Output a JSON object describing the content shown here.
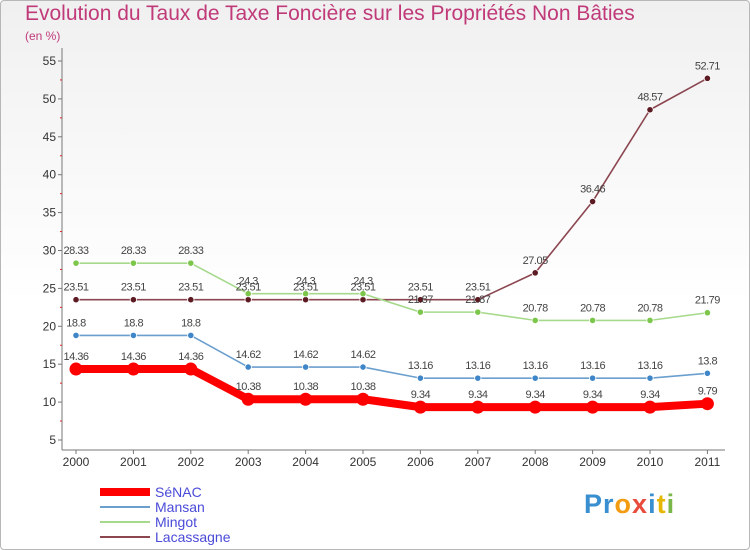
{
  "title": "Evolution du Taux de Taxe Foncière sur les Propriétés Non Bâties",
  "subtitle": "(en %)",
  "logo": {
    "text": "Proxiti",
    "letters": [
      "P",
      "r",
      "o",
      "x",
      "i",
      "t",
      "i"
    ],
    "colors": [
      "#3a8fd0",
      "#3a8fd0",
      "#f39c12",
      "#e74c3c",
      "#3a8fd0",
      "#e6b700",
      "#7ab648"
    ]
  },
  "chart_data": {
    "type": "line",
    "title": "Evolution du Taux de Taxe Foncière sur les Propriétés Non Bâties",
    "ylabel": "(en %)",
    "xlabel": "",
    "ylim": [
      5,
      55
    ],
    "yticks": [
      5,
      10,
      15,
      20,
      25,
      30,
      35,
      40,
      45,
      50,
      55
    ],
    "categories": [
      "2000",
      "2001",
      "2002",
      "2003",
      "2004",
      "2005",
      "2006",
      "2007",
      "2008",
      "2009",
      "2010",
      "2011"
    ],
    "series": [
      {
        "name": "SéNAC",
        "color": "#ff0000",
        "width": "thick",
        "values": [
          14.36,
          14.36,
          14.36,
          10.38,
          10.38,
          10.38,
          9.34,
          9.34,
          9.34,
          9.34,
          9.34,
          9.79
        ],
        "labels": [
          "14.36",
          "14.36",
          "14.36",
          "10.38",
          "10.38",
          "10.38",
          "9.34",
          "9.34",
          "9.34",
          "9.34",
          "9.34",
          "9.79"
        ]
      },
      {
        "name": "Mansan",
        "color": "#6b9fce",
        "marker": "#3f86c9",
        "width": "thin",
        "values": [
          18.8,
          18.8,
          18.8,
          14.62,
          14.62,
          14.62,
          13.16,
          13.16,
          13.16,
          13.16,
          13.16,
          13.8
        ],
        "labels": [
          "18.8",
          "18.8",
          "18.8",
          "14.62",
          "14.62",
          "14.62",
          "13.16",
          "13.16",
          "13.16",
          "13.16",
          "13.16",
          "13.8"
        ]
      },
      {
        "name": "Mingot",
        "color": "#a6d98b",
        "marker": "#7cc64b",
        "width": "thin",
        "values": [
          28.33,
          28.33,
          28.33,
          24.3,
          24.3,
          24.3,
          21.87,
          21.87,
          20.78,
          20.78,
          20.78,
          21.79
        ],
        "labels": [
          "28.33",
          "28.33",
          "28.33",
          "24.3",
          "24.3",
          "24.3",
          "21.87",
          "21.87",
          "20.78",
          "20.78",
          "20.78",
          "21.79"
        ]
      },
      {
        "name": "Lacassagne",
        "color": "#8b4650",
        "marker": "#5c1a22",
        "width": "thin",
        "values": [
          23.51,
          23.51,
          23.51,
          23.51,
          23.51,
          23.51,
          23.51,
          23.51,
          27.05,
          36.46,
          48.57,
          52.71
        ],
        "labels": [
          "23.51",
          "23.51",
          "23.51",
          "23.51",
          "23.51",
          "23.51",
          "23.51",
          "23.51",
          "27.05",
          "36.46",
          "48.57",
          "52.71"
        ]
      }
    ],
    "legend": [
      "SéNAC",
      "Mansan",
      "Mingot",
      "Lacassagne"
    ],
    "legend_position": "bottom-left",
    "grid": false
  }
}
